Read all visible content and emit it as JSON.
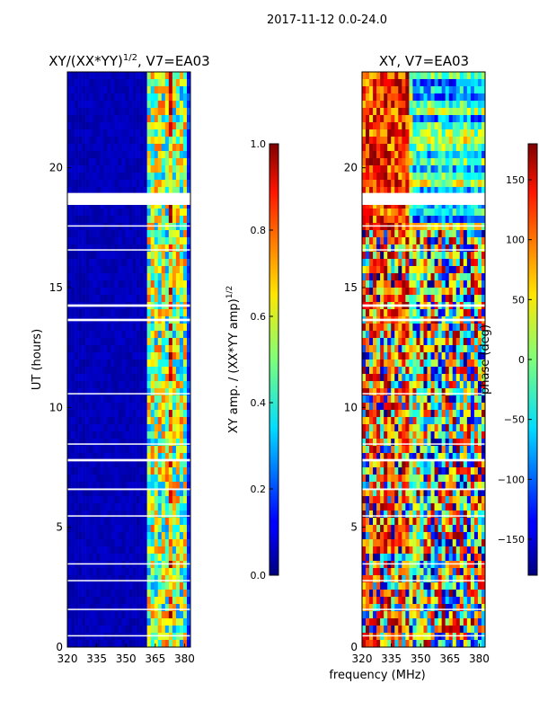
{
  "figure": {
    "suptitle": "2017-11-12 0.0-24.0",
    "shared_xlabel": "frequency (MHz)"
  },
  "chart_data": [
    {
      "type": "heatmap",
      "title_main": "XY/(XX*YY)",
      "title_exp": "1/2",
      "title_suffix": ", V7=EA03",
      "xlabel": "",
      "ylabel": "UT (hours)",
      "xlim": [
        320,
        383
      ],
      "ylim": [
        0,
        24
      ],
      "xticks": [
        320,
        335,
        350,
        365,
        380
      ],
      "yticks": [
        0,
        5,
        10,
        15,
        20
      ],
      "colormap": "jet",
      "colorbar": {
        "label_main": "XY amp. / (XX*YY amp)",
        "label_exp": "1/2",
        "range": [
          0.0,
          1.0
        ],
        "ticks": [
          "0.0",
          "0.2",
          "0.4",
          "0.6",
          "0.8",
          "1.0"
        ],
        "tick_values": [
          0,
          0.2,
          0.4,
          0.6,
          0.8,
          1.0
        ]
      },
      "gaps_hours": [
        [
          18.45,
          18.95
        ],
        [
          17.55,
          17.6
        ],
        [
          16.55,
          16.6
        ],
        [
          14.2,
          14.3
        ],
        [
          13.6,
          13.7
        ],
        [
          10.55,
          10.6
        ],
        [
          8.45,
          8.5
        ],
        [
          7.75,
          7.85
        ],
        [
          6.55,
          6.62
        ],
        [
          5.45,
          5.5
        ],
        [
          3.45,
          3.5
        ],
        [
          2.75,
          2.8
        ],
        [
          1.55,
          1.6
        ],
        [
          0.45,
          0.5
        ]
      ]
    },
    {
      "type": "heatmap",
      "title_main": "XY, V7=EA03",
      "xlabel": "frequency (MHz)",
      "ylabel": "",
      "xlim": [
        320,
        383
      ],
      "ylim": [
        0,
        24
      ],
      "xticks": [
        320,
        335,
        350,
        365,
        380
      ],
      "yticks": [
        0,
        5,
        10,
        15,
        20
      ],
      "colormap": "jet",
      "colorbar": {
        "label_main": "phase (deg)",
        "range": [
          -180,
          180
        ],
        "ticks": [
          "150",
          "100",
          "50",
          "0",
          "−50",
          "−100",
          "−150"
        ],
        "tick_values": [
          150,
          100,
          50,
          0,
          -50,
          -100,
          -150
        ]
      },
      "gaps_hours": [
        [
          18.45,
          18.95
        ],
        [
          17.55,
          17.6
        ],
        [
          16.55,
          16.6
        ],
        [
          14.2,
          14.3
        ],
        [
          13.6,
          13.7
        ],
        [
          10.55,
          10.6
        ],
        [
          8.45,
          8.5
        ],
        [
          7.75,
          7.85
        ],
        [
          6.55,
          6.62
        ],
        [
          5.45,
          5.5
        ],
        [
          3.45,
          3.5
        ],
        [
          2.75,
          2.8
        ],
        [
          1.55,
          1.6
        ],
        [
          0.45,
          0.5
        ]
      ]
    }
  ]
}
